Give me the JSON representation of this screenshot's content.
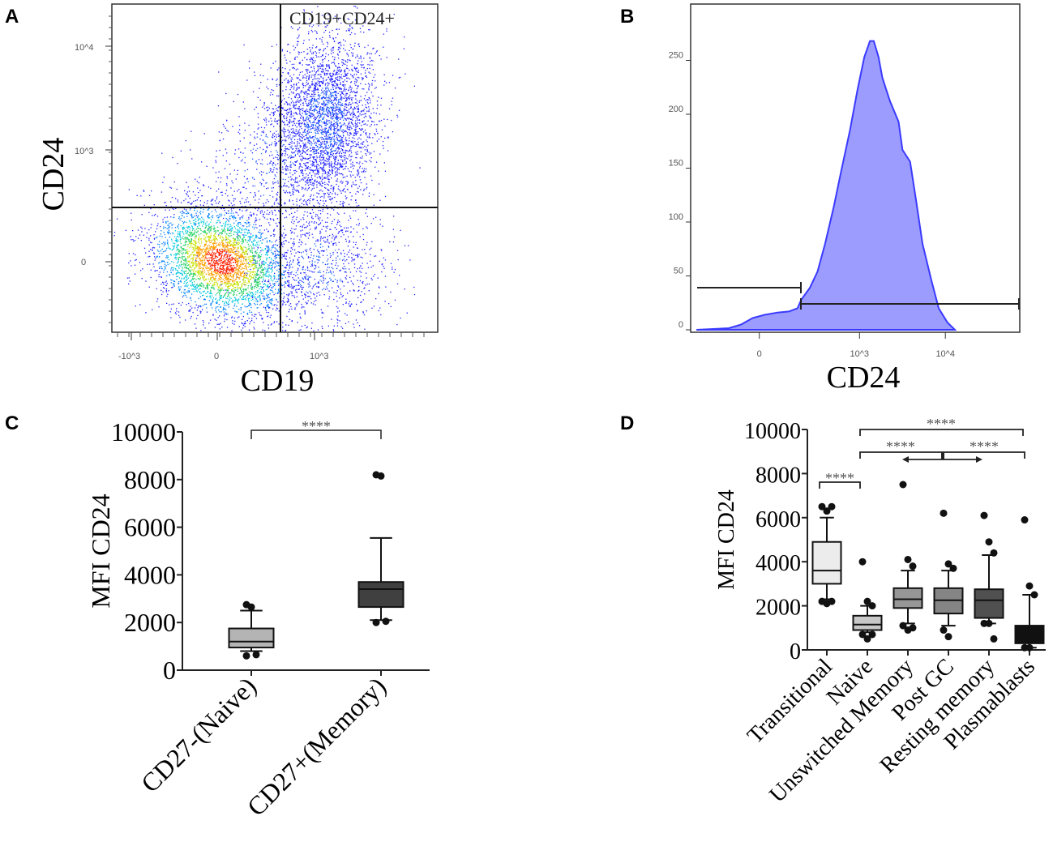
{
  "panel_labels": [
    "A",
    "B",
    "C",
    "D"
  ],
  "chart_data": [
    {
      "panel": "A",
      "type": "scatter",
      "xlabel": "CD19",
      "ylabel": "CD24",
      "x_ticks": [
        "-10^3",
        "0",
        "10^3"
      ],
      "y_ticks": [
        "10^4",
        "10^3",
        "0"
      ],
      "gate_label": "CD19+CD24+"
    },
    {
      "panel": "B",
      "type": "area",
      "xlabel": "CD24",
      "x_ticks": [
        {
          "label": "0",
          "pos": 0
        },
        {
          "label": "10^3",
          "pos": 1.05
        },
        {
          "label": "10^4",
          "pos": 1.95
        }
      ],
      "y_ticks": [
        0,
        50,
        100,
        150,
        200,
        250
      ],
      "ylim": [
        0,
        305
      ],
      "xlim": [
        -0.72,
        2.73
      ],
      "fill_color": "#9c9cff",
      "line_color": "#3a3aff",
      "points": [
        [
          -0.66,
          0
        ],
        [
          -0.32,
          1.5
        ],
        [
          -0.19,
          5
        ],
        [
          -0.07,
          11
        ],
        [
          0.06,
          14
        ],
        [
          0.19,
          16
        ],
        [
          0.31,
          17
        ],
        [
          0.4,
          20
        ],
        [
          0.44,
          28
        ],
        [
          0.53,
          39
        ],
        [
          0.61,
          54
        ],
        [
          0.69,
          80
        ],
        [
          0.78,
          114
        ],
        [
          0.86,
          148
        ],
        [
          0.95,
          185
        ],
        [
          1.03,
          223
        ],
        [
          1.1,
          253
        ],
        [
          1.16,
          268
        ],
        [
          1.2,
          268
        ],
        [
          1.25,
          253
        ],
        [
          1.29,
          234
        ],
        [
          1.33,
          223
        ],
        [
          1.37,
          212
        ],
        [
          1.46,
          193
        ],
        [
          1.5,
          167
        ],
        [
          1.58,
          156
        ],
        [
          1.64,
          122
        ],
        [
          1.71,
          80
        ],
        [
          1.8,
          47
        ],
        [
          1.88,
          20
        ],
        [
          1.97,
          7
        ],
        [
          2.05,
          0
        ]
      ]
    },
    {
      "panel": "C",
      "type": "box",
      "ylabel": "MFI CD24",
      "ylim": [
        0,
        10000
      ],
      "y_ticks": [
        0,
        2000,
        4000,
        6000,
        8000,
        10000
      ],
      "significance": "****",
      "categories": [
        "CD27-(Naive)",
        "CD27+(Memory)"
      ],
      "boxes": [
        {
          "q1": 950,
          "median": 1200,
          "q3": 1750,
          "whisker_low": 800,
          "whisker_high": 2500,
          "outliers": [
            2750,
            2650,
            650,
            600
          ],
          "color": "#b4b4b4"
        },
        {
          "q1": 2650,
          "median": 3400,
          "q3": 3700,
          "whisker_low": 2100,
          "whisker_high": 5550,
          "outliers": [
            8200,
            8150,
            2050,
            2000
          ],
          "color": "#404040"
        }
      ]
    },
    {
      "panel": "D",
      "type": "box",
      "ylabel": "MFI CD24",
      "ylim": [
        0,
        10000
      ],
      "y_ticks": [
        0,
        2000,
        4000,
        6000,
        8000,
        10000
      ],
      "significance": [
        "****",
        "****",
        "****",
        "****"
      ],
      "categories": [
        "Transitional",
        "Naive",
        "Unswitched Memory",
        "Post GC",
        "Resting memory",
        "Plasmablasts"
      ],
      "boxes": [
        {
          "q1": 3000,
          "median": 3600,
          "q3": 4900,
          "whisker_low": 2300,
          "whisker_high": 6000,
          "outliers": [
            6500,
            6300,
            6500,
            2200,
            2100,
            2200
          ],
          "color": "#ececec"
        },
        {
          "q1": 900,
          "median": 1150,
          "q3": 1550,
          "whisker_low": 800,
          "whisker_high": 2000,
          "outliers": [
            4000,
            2200,
            2000,
            700,
            500,
            700
          ],
          "color": "#c8c8c8"
        },
        {
          "q1": 1900,
          "median": 2300,
          "q3": 2800,
          "whisker_low": 1200,
          "whisker_high": 3600,
          "outliers": [
            7500,
            4100,
            3800,
            1100,
            900,
            1000
          ],
          "color": "#969696"
        },
        {
          "q1": 1650,
          "median": 2250,
          "q3": 2800,
          "whisker_low": 1100,
          "whisker_high": 3600,
          "outliers": [
            6200,
            3900,
            3700,
            900,
            600
          ],
          "color": "#858585"
        },
        {
          "q1": 1450,
          "median": 2250,
          "q3": 2750,
          "whisker_low": 1200,
          "whisker_high": 4300,
          "outliers": [
            6100,
            4900,
            4400,
            1200,
            1200,
            500
          ],
          "color": "#505050"
        },
        {
          "q1": 300,
          "median": 700,
          "q3": 1100,
          "whisker_low": 100,
          "whisker_high": 2500,
          "outliers": [
            5900,
            2900,
            2500,
            100,
            100
          ],
          "color": "#111111"
        }
      ]
    }
  ]
}
